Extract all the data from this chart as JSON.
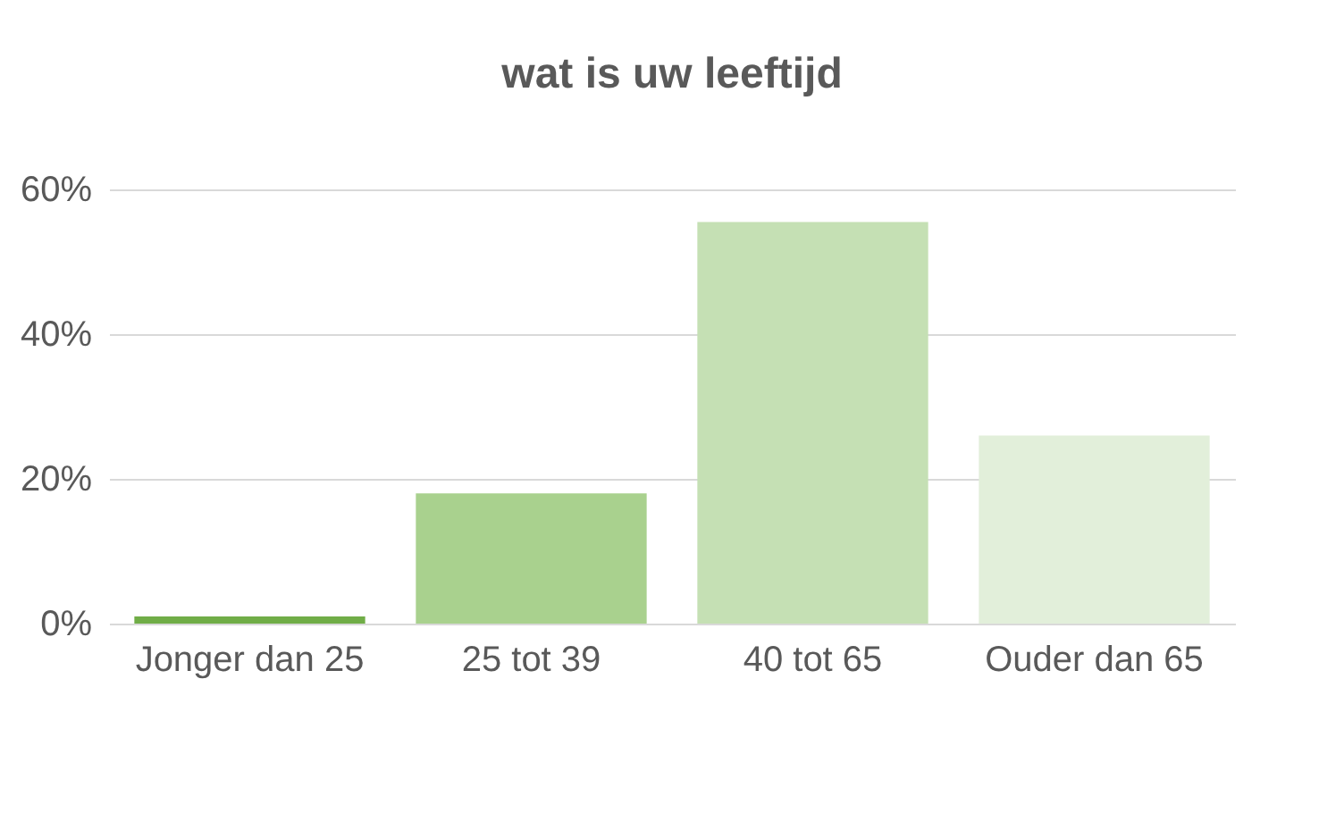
{
  "chart_data": {
    "type": "bar",
    "title": "wat is uw leeftijd",
    "categories": [
      "Jonger dan 25",
      "25 tot 39",
      "40 tot 65",
      "Ouder dan 65"
    ],
    "values": [
      1,
      18,
      55.5,
      26
    ],
    "colors": [
      "#70ad47",
      "#a9d18e",
      "#c5e0b4",
      "#e2efda"
    ],
    "ylim": [
      0,
      60
    ],
    "yticks": [
      {
        "value": 0,
        "label": "0%"
      },
      {
        "value": 20,
        "label": "20%"
      },
      {
        "value": 40,
        "label": "40%"
      },
      {
        "value": 60,
        "label": "60%"
      }
    ],
    "grid": "y"
  }
}
